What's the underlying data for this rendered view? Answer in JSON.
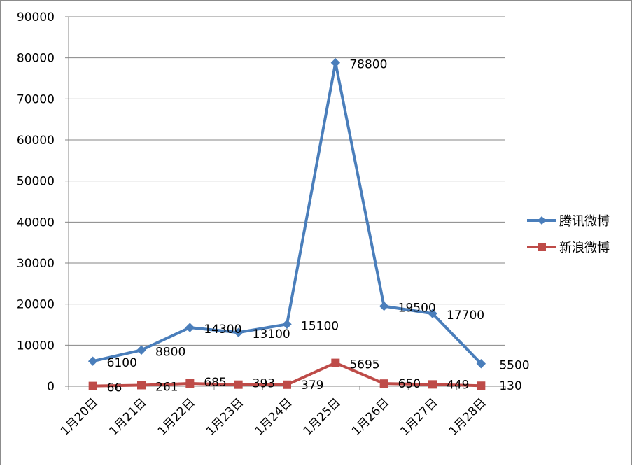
{
  "chart_data": {
    "type": "line",
    "title": "",
    "xlabel": "",
    "ylabel": "",
    "categories": [
      "1月20日",
      "1月21日",
      "1月22日",
      "1月23日",
      "1月24日",
      "1月25日",
      "1月26日",
      "1月27日",
      "1月28日"
    ],
    "ylim": [
      0,
      90000
    ],
    "yticks": [
      0,
      10000,
      20000,
      30000,
      40000,
      50000,
      60000,
      70000,
      80000,
      90000
    ],
    "grid": true,
    "legend_position": "right",
    "series": [
      {
        "name": "腾讯微博",
        "color": "#4a7ebb",
        "marker": "diamond",
        "values": [
          6100,
          8800,
          14300,
          13100,
          15100,
          78800,
          19500,
          17700,
          5500
        ]
      },
      {
        "name": "新浪微博",
        "color": "#be4b48",
        "marker": "square",
        "values": [
          66,
          261,
          685,
          393,
          379,
          5695,
          650,
          449,
          130
        ]
      }
    ]
  }
}
